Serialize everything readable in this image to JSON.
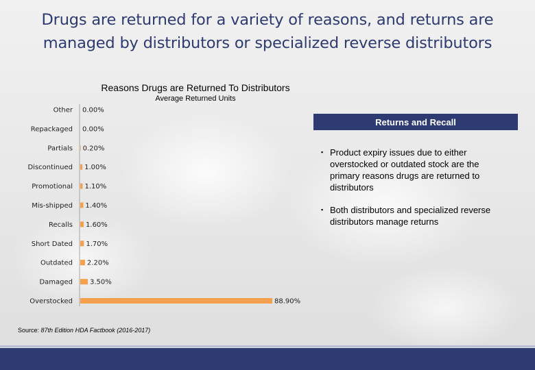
{
  "slide": {
    "title_line1": "Drugs are returned for a variety of reasons, and returns are",
    "title_line2": "managed by distributors or specialized reverse distributors"
  },
  "chart_data": {
    "type": "bar",
    "orientation": "horizontal",
    "title": "Reasons Drugs are Returned To Distributors",
    "subtitle": "Average Returned Units",
    "categories": [
      "Other",
      "Repackaged",
      "Partials",
      "Discontinued",
      "Promotional",
      "Mis-shipped",
      "Recalls",
      "Short Dated",
      "Outdated",
      "Damaged",
      "Overstocked"
    ],
    "values": [
      0.0,
      0.0,
      0.2,
      1.0,
      1.1,
      1.4,
      1.6,
      1.7,
      2.2,
      3.5,
      88.9
    ],
    "value_labels": [
      "0.00%",
      "0.00%",
      "0.20%",
      "1.00%",
      "1.10%",
      "1.40%",
      "1.60%",
      "1.70%",
      "2.20%",
      "3.50%",
      "88.90%"
    ],
    "bar_color": "#f5a04c",
    "axis_color": "#a6a6a6",
    "grid": false,
    "legend": "none"
  },
  "source": {
    "prefix": "Source: ",
    "italic": "87th Edition HDA Factbook (2016-2017)"
  },
  "panel": {
    "header": "Returns and Recall",
    "header_color": "#2e3b72",
    "bullet_glyph": "▪",
    "bullets": [
      "Product expiry issues due to either overstocked or outdated stock are the primary reasons drugs are returned to distributors",
      "Both distributors and specialized reverse distributors manage returns"
    ]
  }
}
